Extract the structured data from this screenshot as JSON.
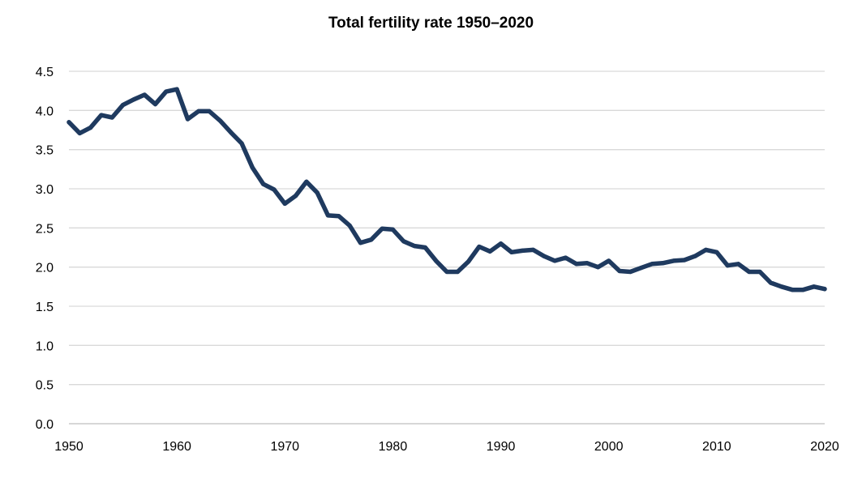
{
  "chart_data": {
    "type": "line",
    "title": "Total fertility rate 1950–2020",
    "xlabel": "",
    "ylabel": "",
    "xlim": [
      1950,
      2020
    ],
    "ylim": [
      0,
      4.5
    ],
    "x_ticks": [
      "1950",
      "1960",
      "1970",
      "1980",
      "1990",
      "2000",
      "2010",
      "2020"
    ],
    "y_ticks": [
      "0.0",
      "0.5",
      "1.0",
      "1.5",
      "2.0",
      "2.5",
      "3.0",
      "3.5",
      "4.0",
      "4.5"
    ],
    "grid": true,
    "legend": "none",
    "colors": {
      "line": "#1f3a5f",
      "grid": "#d9d9d9",
      "axis": "#bfbfbf"
    },
    "series": [
      {
        "x": [
          1950,
          1951,
          1952,
          1953,
          1954,
          1955,
          1956,
          1957,
          1958,
          1959,
          1960,
          1961,
          1962,
          1963,
          1964,
          1965,
          1966,
          1967,
          1968,
          1969,
          1970,
          1971,
          1972,
          1973,
          1974,
          1975,
          1976,
          1977,
          1978,
          1979,
          1980,
          1981,
          1982,
          1983,
          1984,
          1985,
          1986,
          1987,
          1988,
          1989,
          1990,
          1991,
          1992,
          1993,
          1994,
          1995,
          1996,
          1997,
          1998,
          1999,
          2000,
          2001,
          2002,
          2003,
          2004,
          2005,
          2006,
          2007,
          2008,
          2009,
          2010,
          2011,
          2012,
          2013,
          2014,
          2015,
          2016,
          2017,
          2018,
          2019,
          2020
        ],
        "values": [
          3.85,
          3.71,
          3.78,
          3.94,
          3.91,
          4.07,
          4.14,
          4.2,
          4.08,
          4.24,
          4.27,
          3.89,
          3.99,
          3.99,
          3.87,
          3.72,
          3.58,
          3.27,
          3.06,
          2.99,
          2.81,
          2.91,
          3.09,
          2.95,
          2.66,
          2.65,
          2.53,
          2.31,
          2.35,
          2.49,
          2.48,
          2.33,
          2.27,
          2.25,
          2.08,
          1.94,
          1.94,
          2.07,
          2.26,
          2.2,
          2.3,
          2.19,
          2.21,
          2.22,
          2.14,
          2.08,
          2.12,
          2.04,
          2.05,
          2.0,
          2.08,
          1.95,
          1.94,
          1.99,
          2.04,
          2.05,
          2.08,
          2.09,
          2.14,
          2.22,
          2.19,
          2.02,
          2.04,
          1.94,
          1.94,
          1.8,
          1.75,
          1.71,
          1.71,
          1.75,
          1.72
        ]
      }
    ]
  }
}
